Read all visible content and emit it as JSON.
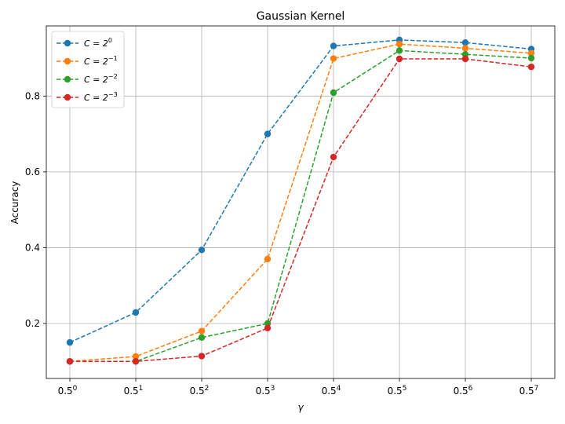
{
  "chart_data": {
    "type": "line",
    "title": "Gaussian Kernel",
    "xlabel": "γ",
    "ylabel": "Accuracy",
    "categories": [
      "0",
      "1",
      "2",
      "3",
      "4",
      "5",
      "6",
      "7"
    ],
    "x_tick_base": "0.5",
    "yticks": [
      "0.2",
      "0.4",
      "0.6",
      "0.8"
    ],
    "ylim": [
      0.055,
      0.985
    ],
    "grid": true,
    "legend_position": "top-left",
    "series": [
      {
        "name_base": "C = 2",
        "name_exp": "0",
        "color": "#1f77b4",
        "values": [
          0.15,
          0.229,
          0.394,
          0.7,
          0.932,
          0.948,
          0.941,
          0.924
        ]
      },
      {
        "name_base": "C = 2",
        "name_exp": "−1",
        "color": "#ff7f0e",
        "values": [
          0.1,
          0.113,
          0.18,
          0.37,
          0.899,
          0.937,
          0.926,
          0.913
        ]
      },
      {
        "name_base": "C = 2",
        "name_exp": "−2",
        "color": "#2ca02c",
        "values": [
          0.1,
          0.1,
          0.163,
          0.2,
          0.809,
          0.92,
          0.91,
          0.9
        ]
      },
      {
        "name_base": "C = 2",
        "name_exp": "−3",
        "color": "#d62728",
        "values": [
          0.1,
          0.1,
          0.114,
          0.188,
          0.639,
          0.898,
          0.898,
          0.877
        ]
      }
    ]
  }
}
